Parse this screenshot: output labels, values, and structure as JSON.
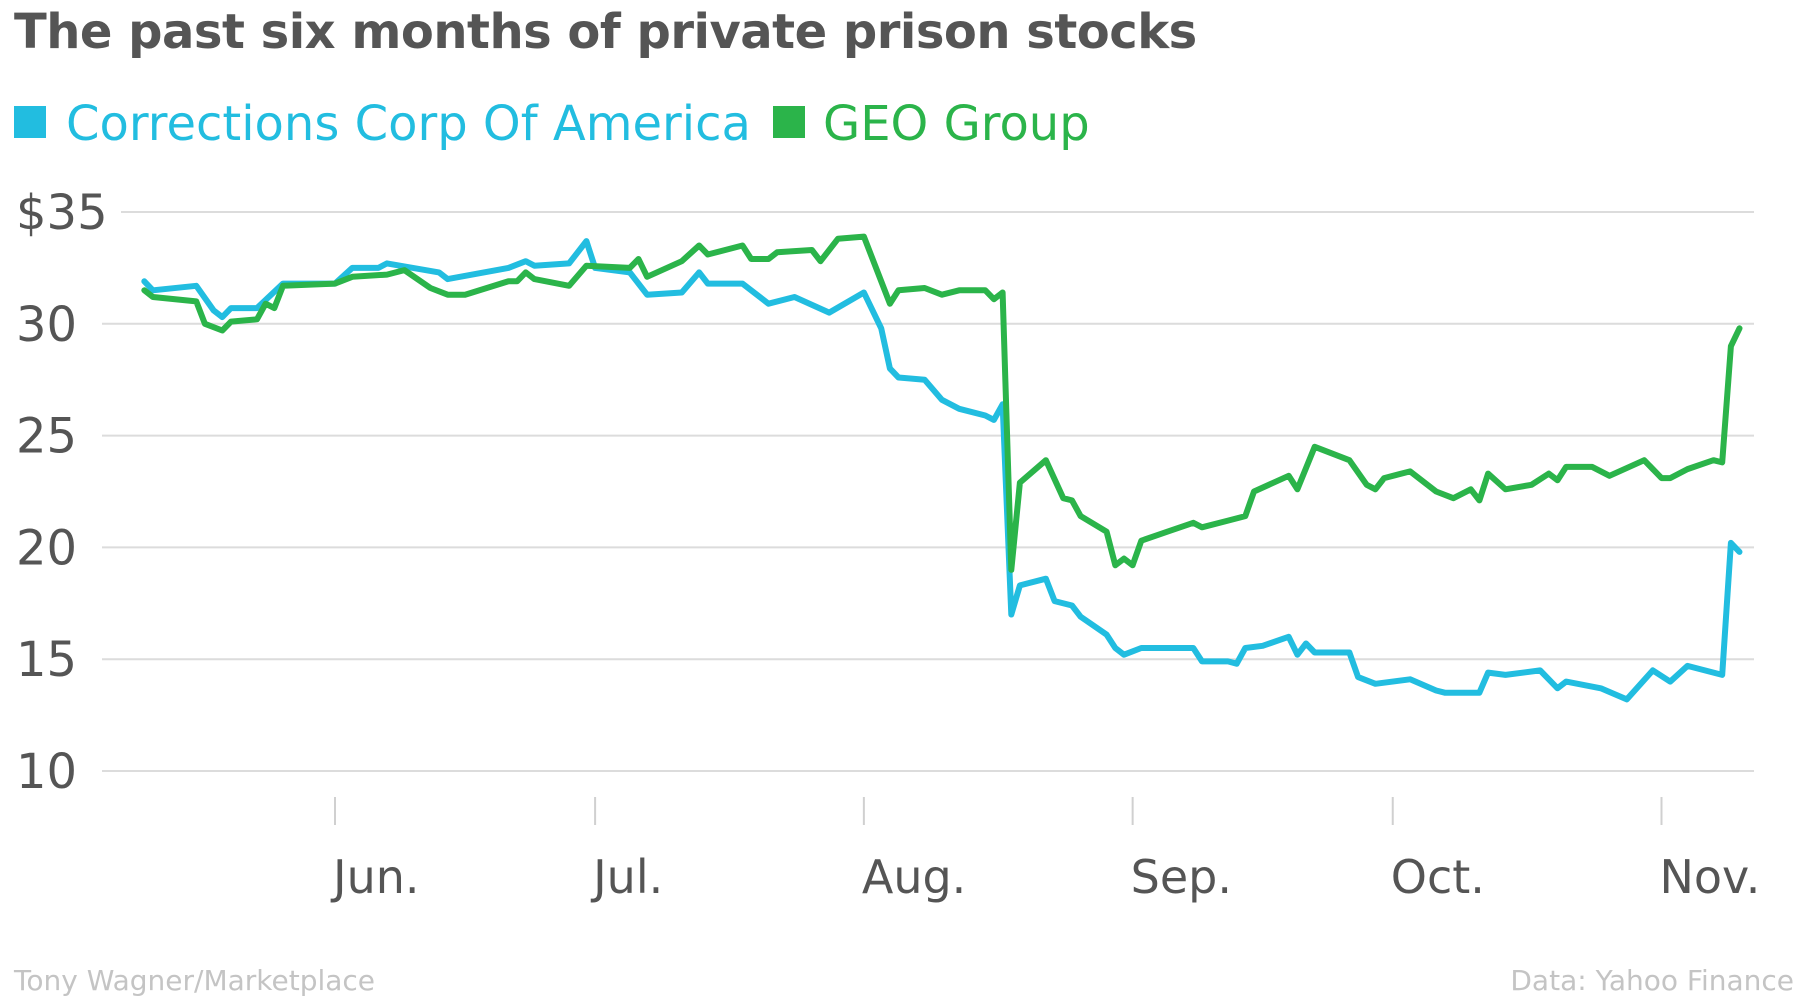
{
  "title": "The past six months of private prison stocks",
  "legend": [
    {
      "name": "Corrections Corp Of America",
      "color": "#22bde0"
    },
    {
      "name": "GEO Group",
      "color": "#2bb44a"
    }
  ],
  "footer": {
    "credit": "Tony Wagner/Marketplace",
    "source": "Data: Yahoo Finance"
  },
  "chart_data": {
    "type": "line",
    "title": "The past six months of private prison stocks",
    "xlabel": "",
    "ylabel": "",
    "ylim": [
      10,
      35
    ],
    "y_ticks": [
      {
        "value": 35,
        "label": "$35"
      },
      {
        "value": 30,
        "label": "30"
      },
      {
        "value": 25,
        "label": "25"
      },
      {
        "value": 20,
        "label": "20"
      },
      {
        "value": 15,
        "label": "15"
      },
      {
        "value": 10,
        "label": "10"
      }
    ],
    "x_ticks": [
      {
        "date": "Jun 1",
        "label": "Jun."
      },
      {
        "date": "Jul 1",
        "label": "Jul."
      },
      {
        "date": "Aug 1",
        "label": "Aug."
      },
      {
        "date": "Sep 1",
        "label": "Sep."
      },
      {
        "date": "Oct 1",
        "label": "Oct."
      },
      {
        "date": "Nov 1",
        "label": "Nov."
      }
    ],
    "grid": true,
    "legend_position": "top-left",
    "series": [
      {
        "name": "Corrections Corp Of America",
        "color": "#22bde0",
        "points": [
          [
            "May 10",
            31.9
          ],
          [
            "May 11",
            31.5
          ],
          [
            "May 16",
            31.7
          ],
          [
            "May 18",
            30.6
          ],
          [
            "May 19",
            30.3
          ],
          [
            "May 20",
            30.7
          ],
          [
            "May 23",
            30.7
          ],
          [
            "May 26",
            31.8
          ],
          [
            "Jun 1",
            31.8
          ],
          [
            "Jun 3",
            32.5
          ],
          [
            "Jun 6",
            32.5
          ],
          [
            "Jun 7",
            32.7
          ],
          [
            "Jun 13",
            32.3
          ],
          [
            "Jun 14",
            32.0
          ],
          [
            "Jun 21",
            32.5
          ],
          [
            "Jun 23",
            32.8
          ],
          [
            "Jun 24",
            32.6
          ],
          [
            "Jun 28",
            32.7
          ],
          [
            "Jun 30",
            33.7
          ],
          [
            "Jul 1",
            32.5
          ],
          [
            "Jul 5",
            32.3
          ],
          [
            "Jul 7",
            31.3
          ],
          [
            "Jul 11",
            31.4
          ],
          [
            "Jul 13",
            32.3
          ],
          [
            "Jul 14",
            31.8
          ],
          [
            "Jul 18",
            31.8
          ],
          [
            "Jul 21",
            30.9
          ],
          [
            "Jul 24",
            31.2
          ],
          [
            "Jul 28",
            30.5
          ],
          [
            "Aug 1",
            31.4
          ],
          [
            "Aug 3",
            29.8
          ],
          [
            "Aug 4",
            28.0
          ],
          [
            "Aug 5",
            27.6
          ],
          [
            "Aug 8",
            27.5
          ],
          [
            "Aug 10",
            26.6
          ],
          [
            "Aug 12",
            26.2
          ],
          [
            "Aug 15",
            25.9
          ],
          [
            "Aug 16",
            25.7
          ],
          [
            "Aug 17",
            26.4
          ],
          [
            "Aug 18",
            17.0
          ],
          [
            "Aug 19",
            18.3
          ],
          [
            "Aug 22",
            18.6
          ],
          [
            "Aug 23",
            17.6
          ],
          [
            "Aug 25",
            17.4
          ],
          [
            "Aug 26",
            16.9
          ],
          [
            "Aug 29",
            16.1
          ],
          [
            "Aug 30",
            15.5
          ],
          [
            "Aug 31",
            15.2
          ],
          [
            "Sep 2",
            15.5
          ],
          [
            "Sep 8",
            15.5
          ],
          [
            "Sep 9",
            14.9
          ],
          [
            "Sep 12",
            14.9
          ],
          [
            "Sep 13",
            14.8
          ],
          [
            "Sep 14",
            15.5
          ],
          [
            "Sep 16",
            15.6
          ],
          [
            "Sep 19",
            16.0
          ],
          [
            "Sep 20",
            15.2
          ],
          [
            "Sep 21",
            15.7
          ],
          [
            "Sep 22",
            15.3
          ],
          [
            "Sep 26",
            15.3
          ],
          [
            "Sep 27",
            14.2
          ],
          [
            "Sep 29",
            13.9
          ],
          [
            "Oct 3",
            14.1
          ],
          [
            "Oct 6",
            13.6
          ],
          [
            "Oct 7",
            13.5
          ],
          [
            "Oct 11",
            13.5
          ],
          [
            "Oct 12",
            14.4
          ],
          [
            "Oct 14",
            14.3
          ],
          [
            "Oct 18",
            14.5
          ],
          [
            "Oct 20",
            13.7
          ],
          [
            "Oct 21",
            14.0
          ],
          [
            "Oct 25",
            13.7
          ],
          [
            "Oct 28",
            13.2
          ],
          [
            "Oct 31",
            14.5
          ],
          [
            "Nov 2",
            14.0
          ],
          [
            "Nov 4",
            14.7
          ],
          [
            "Nov 8",
            14.3
          ],
          [
            "Nov 9",
            20.2
          ],
          [
            "Nov 10",
            19.8
          ]
        ]
      },
      {
        "name": "GEO Group",
        "color": "#2bb44a",
        "points": [
          [
            "May 10",
            31.5
          ],
          [
            "May 11",
            31.2
          ],
          [
            "May 16",
            31.0
          ],
          [
            "May 17",
            30.0
          ],
          [
            "May 19",
            29.7
          ],
          [
            "May 20",
            30.1
          ],
          [
            "May 23",
            30.2
          ],
          [
            "May 24",
            30.9
          ],
          [
            "May 25",
            30.7
          ],
          [
            "May 26",
            31.7
          ],
          [
            "Jun 1",
            31.8
          ],
          [
            "Jun 3",
            32.1
          ],
          [
            "Jun 7",
            32.2
          ],
          [
            "Jun 9",
            32.4
          ],
          [
            "Jun 12",
            31.6
          ],
          [
            "Jun 14",
            31.3
          ],
          [
            "Jun 16",
            31.3
          ],
          [
            "Jun 21",
            31.9
          ],
          [
            "Jun 22",
            31.9
          ],
          [
            "Jun 23",
            32.3
          ],
          [
            "Jun 24",
            32.0
          ],
          [
            "Jun 28",
            31.7
          ],
          [
            "Jun 30",
            32.6
          ],
          [
            "Jul 5",
            32.5
          ],
          [
            "Jul 6",
            32.9
          ],
          [
            "Jul 7",
            32.1
          ],
          [
            "Jul 11",
            32.8
          ],
          [
            "Jul 13",
            33.5
          ],
          [
            "Jul 14",
            33.1
          ],
          [
            "Jul 18",
            33.5
          ],
          [
            "Jul 19",
            32.9
          ],
          [
            "Jul 21",
            32.9
          ],
          [
            "Jul 22",
            33.2
          ],
          [
            "Jul 26",
            33.3
          ],
          [
            "Jul 27",
            32.8
          ],
          [
            "Jul 29",
            33.8
          ],
          [
            "Aug 1",
            33.9
          ],
          [
            "Aug 4",
            30.9
          ],
          [
            "Aug 5",
            31.5
          ],
          [
            "Aug 8",
            31.6
          ],
          [
            "Aug 10",
            31.3
          ],
          [
            "Aug 12",
            31.5
          ],
          [
            "Aug 15",
            31.5
          ],
          [
            "Aug 16",
            31.1
          ],
          [
            "Aug 17",
            31.4
          ],
          [
            "Aug 18",
            19.0
          ],
          [
            "Aug 19",
            22.9
          ],
          [
            "Aug 22",
            23.9
          ],
          [
            "Aug 24",
            22.2
          ],
          [
            "Aug 25",
            22.1
          ],
          [
            "Aug 26",
            21.4
          ],
          [
            "Aug 29",
            20.7
          ],
          [
            "Aug 30",
            19.2
          ],
          [
            "Aug 31",
            19.5
          ],
          [
            "Sep 1",
            19.2
          ],
          [
            "Sep 2",
            20.3
          ],
          [
            "Sep 5",
            20.7
          ],
          [
            "Sep 8",
            21.1
          ],
          [
            "Sep 9",
            20.9
          ],
          [
            "Sep 12",
            21.2
          ],
          [
            "Sep 14",
            21.4
          ],
          [
            "Sep 15",
            22.5
          ],
          [
            "Sep 19",
            23.2
          ],
          [
            "Sep 20",
            22.6
          ],
          [
            "Sep 22",
            24.5
          ],
          [
            "Sep 26",
            23.9
          ],
          [
            "Sep 28",
            22.8
          ],
          [
            "Sep 29",
            22.6
          ],
          [
            "Sep 30",
            23.1
          ],
          [
            "Oct 3",
            23.4
          ],
          [
            "Oct 6",
            22.5
          ],
          [
            "Oct 8",
            22.2
          ],
          [
            "Oct 10",
            22.6
          ],
          [
            "Oct 11",
            22.1
          ],
          [
            "Oct 12",
            23.3
          ],
          [
            "Oct 14",
            22.6
          ],
          [
            "Oct 17",
            22.8
          ],
          [
            "Oct 19",
            23.3
          ],
          [
            "Oct 20",
            23.0
          ],
          [
            "Oct 21",
            23.6
          ],
          [
            "Oct 24",
            23.6
          ],
          [
            "Oct 26",
            23.2
          ],
          [
            "Oct 30",
            23.9
          ],
          [
            "Nov 1",
            23.1
          ],
          [
            "Nov 2",
            23.1
          ],
          [
            "Nov 4",
            23.5
          ],
          [
            "Nov 7",
            23.9
          ],
          [
            "Nov 8",
            23.8
          ],
          [
            "Nov 9",
            29.0
          ],
          [
            "Nov 10",
            29.8
          ]
        ]
      }
    ]
  }
}
